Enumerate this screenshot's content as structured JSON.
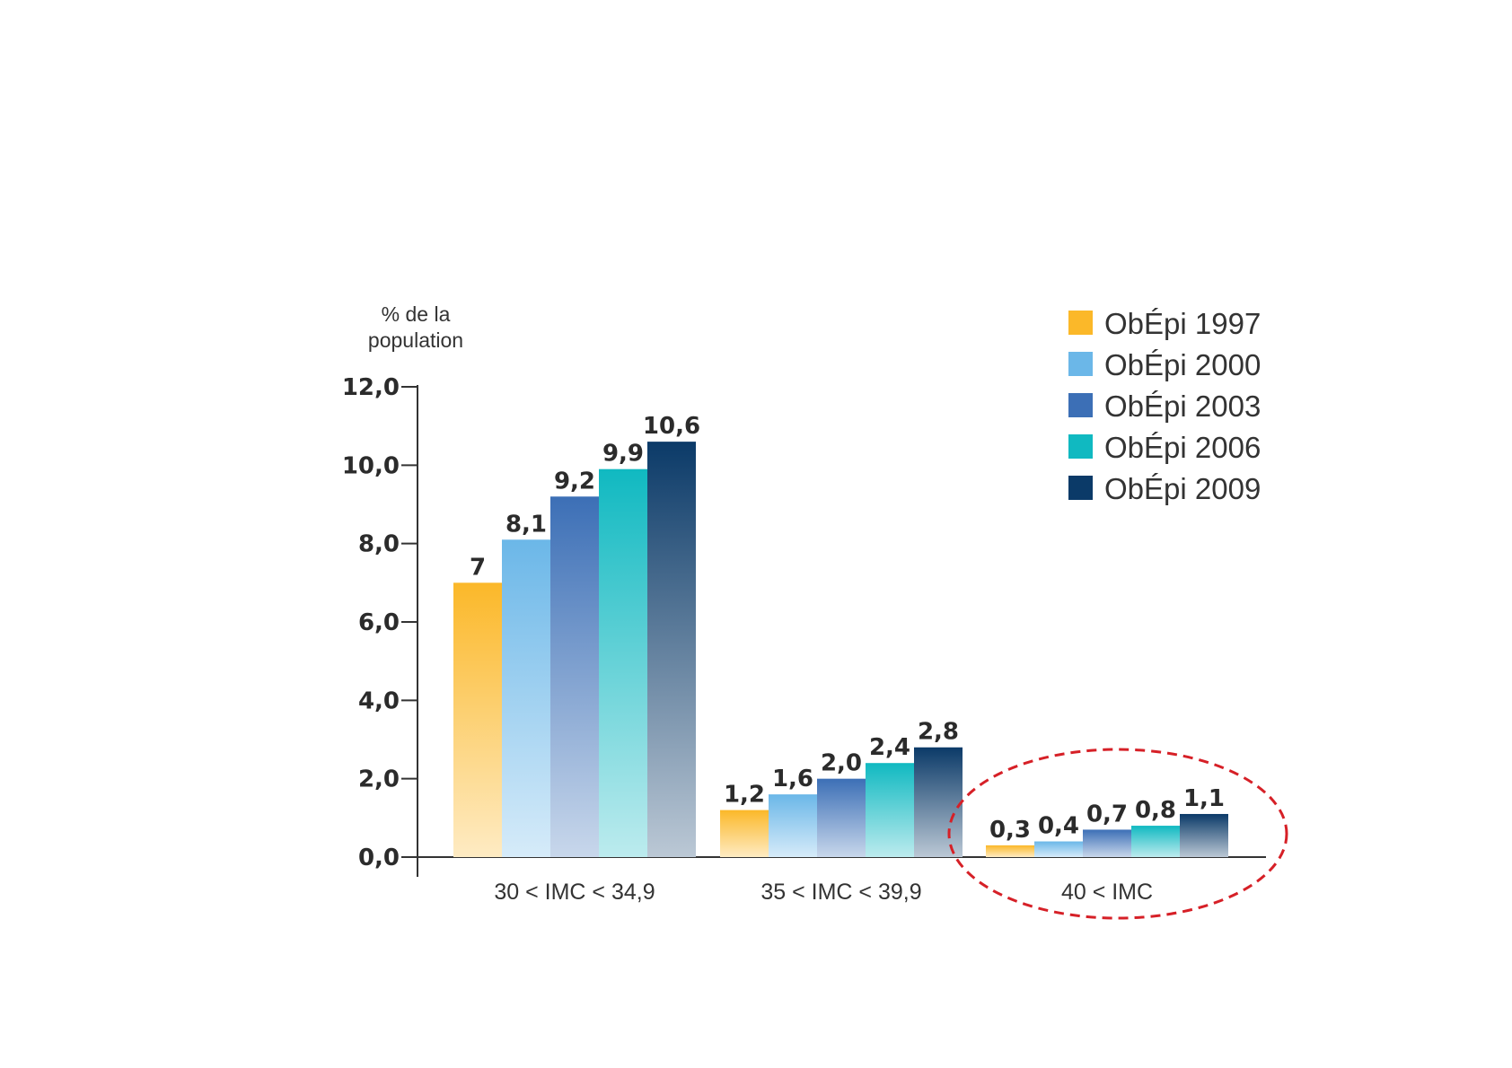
{
  "chart_data": {
    "type": "bar",
    "ylabel_lines": [
      "% de la",
      "population"
    ],
    "ylim": [
      0,
      12
    ],
    "yticks": [
      {
        "value": 0,
        "label": "0,0"
      },
      {
        "value": 2,
        "label": "2,0"
      },
      {
        "value": 4,
        "label": "4,0"
      },
      {
        "value": 6,
        "label": "6,0"
      },
      {
        "value": 8,
        "label": "8,0"
      },
      {
        "value": 10,
        "label": "10,0"
      },
      {
        "value": 12,
        "label": "12,0"
      }
    ],
    "categories": [
      "30 < IMC < 34,9",
      "35 < IMC < 39,9",
      "40 < IMC"
    ],
    "legend_position": "top-right",
    "series": [
      {
        "name": "ObÉpi 1997",
        "color": "#FBB829",
        "values": [
          7,
          1.2,
          0.3
        ],
        "labels": [
          "7",
          "1,2",
          "0,3"
        ]
      },
      {
        "name": "ObÉpi 2000",
        "color": "#6BB7E8",
        "values": [
          8.1,
          1.6,
          0.4
        ],
        "labels": [
          "8,1",
          "1,6",
          "0,4"
        ]
      },
      {
        "name": "ObÉpi 2003",
        "color": "#3C6FB6",
        "values": [
          9.2,
          2.0,
          0.7
        ],
        "labels": [
          "9,2",
          "2,0",
          "0,7"
        ]
      },
      {
        "name": "ObÉpi 2006",
        "color": "#10B9C1",
        "values": [
          9.9,
          2.4,
          0.8
        ],
        "labels": [
          "9,9",
          "2,4",
          "0,8"
        ]
      },
      {
        "name": "ObÉpi 2009",
        "color": "#0B3A68",
        "values": [
          10.6,
          2.8,
          1.1
        ],
        "labels": [
          "10,6",
          "2,8",
          "1,1"
        ]
      }
    ],
    "annotation": {
      "type": "dashed-ellipse",
      "color": "#D62027",
      "highlights": "40 < IMC"
    }
  }
}
